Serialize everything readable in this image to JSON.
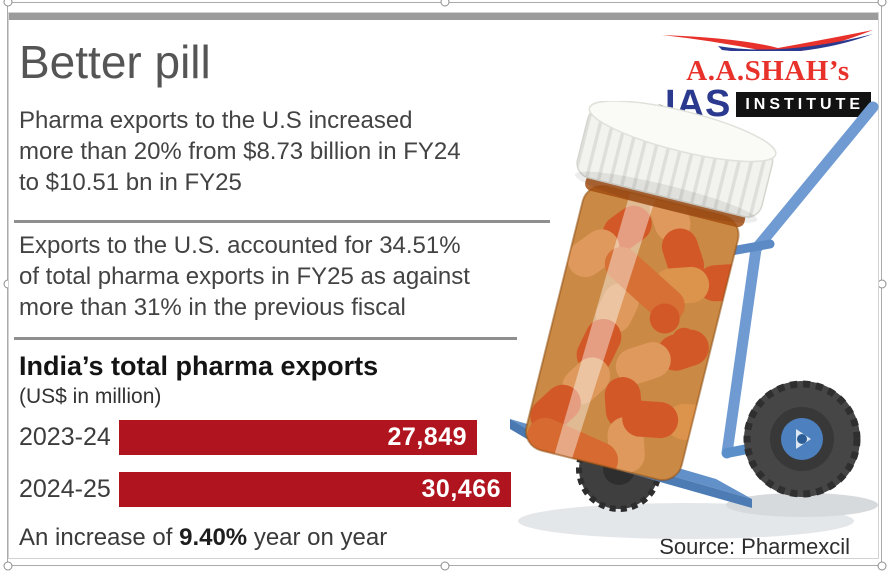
{
  "infographic": {
    "title": "Better pill",
    "para1_lines": [
      "Pharma exports to the U.S increased",
      "more than 20% from $8.73 billion in FY24",
      "to $10.51 bn in FY25"
    ],
    "para2_lines": [
      "Exports to the U.S. accounted for 34.51%",
      "of total pharma exports in FY25 as against",
      "more than 31% in the previous fiscal"
    ],
    "increase": {
      "prefix": "An increase of ",
      "value": "9.40%",
      "suffix": " year on year"
    },
    "source": "Source: Pharmexcil"
  },
  "logo": {
    "name": "A.A.SHAH’s",
    "ias": "IAS",
    "institute": "INSTITUTE",
    "red": "#e8312a",
    "blue": "#2b3a8f"
  },
  "illustration": {
    "alt": "Amber pill bottle full of orange capsules tilted on a blue hand truck"
  },
  "chart_data": {
    "type": "bar",
    "orientation": "horizontal",
    "title": "India’s total pharma exports",
    "subtitle": "(US$ in million)",
    "categories": [
      "2023-24",
      "2024-25"
    ],
    "values": [
      27849,
      30466
    ],
    "value_labels": [
      "27,849",
      "30,466"
    ],
    "bar_color": "#b0141f",
    "xlim": [
      0,
      30466
    ],
    "legend": false,
    "grid": false
  }
}
